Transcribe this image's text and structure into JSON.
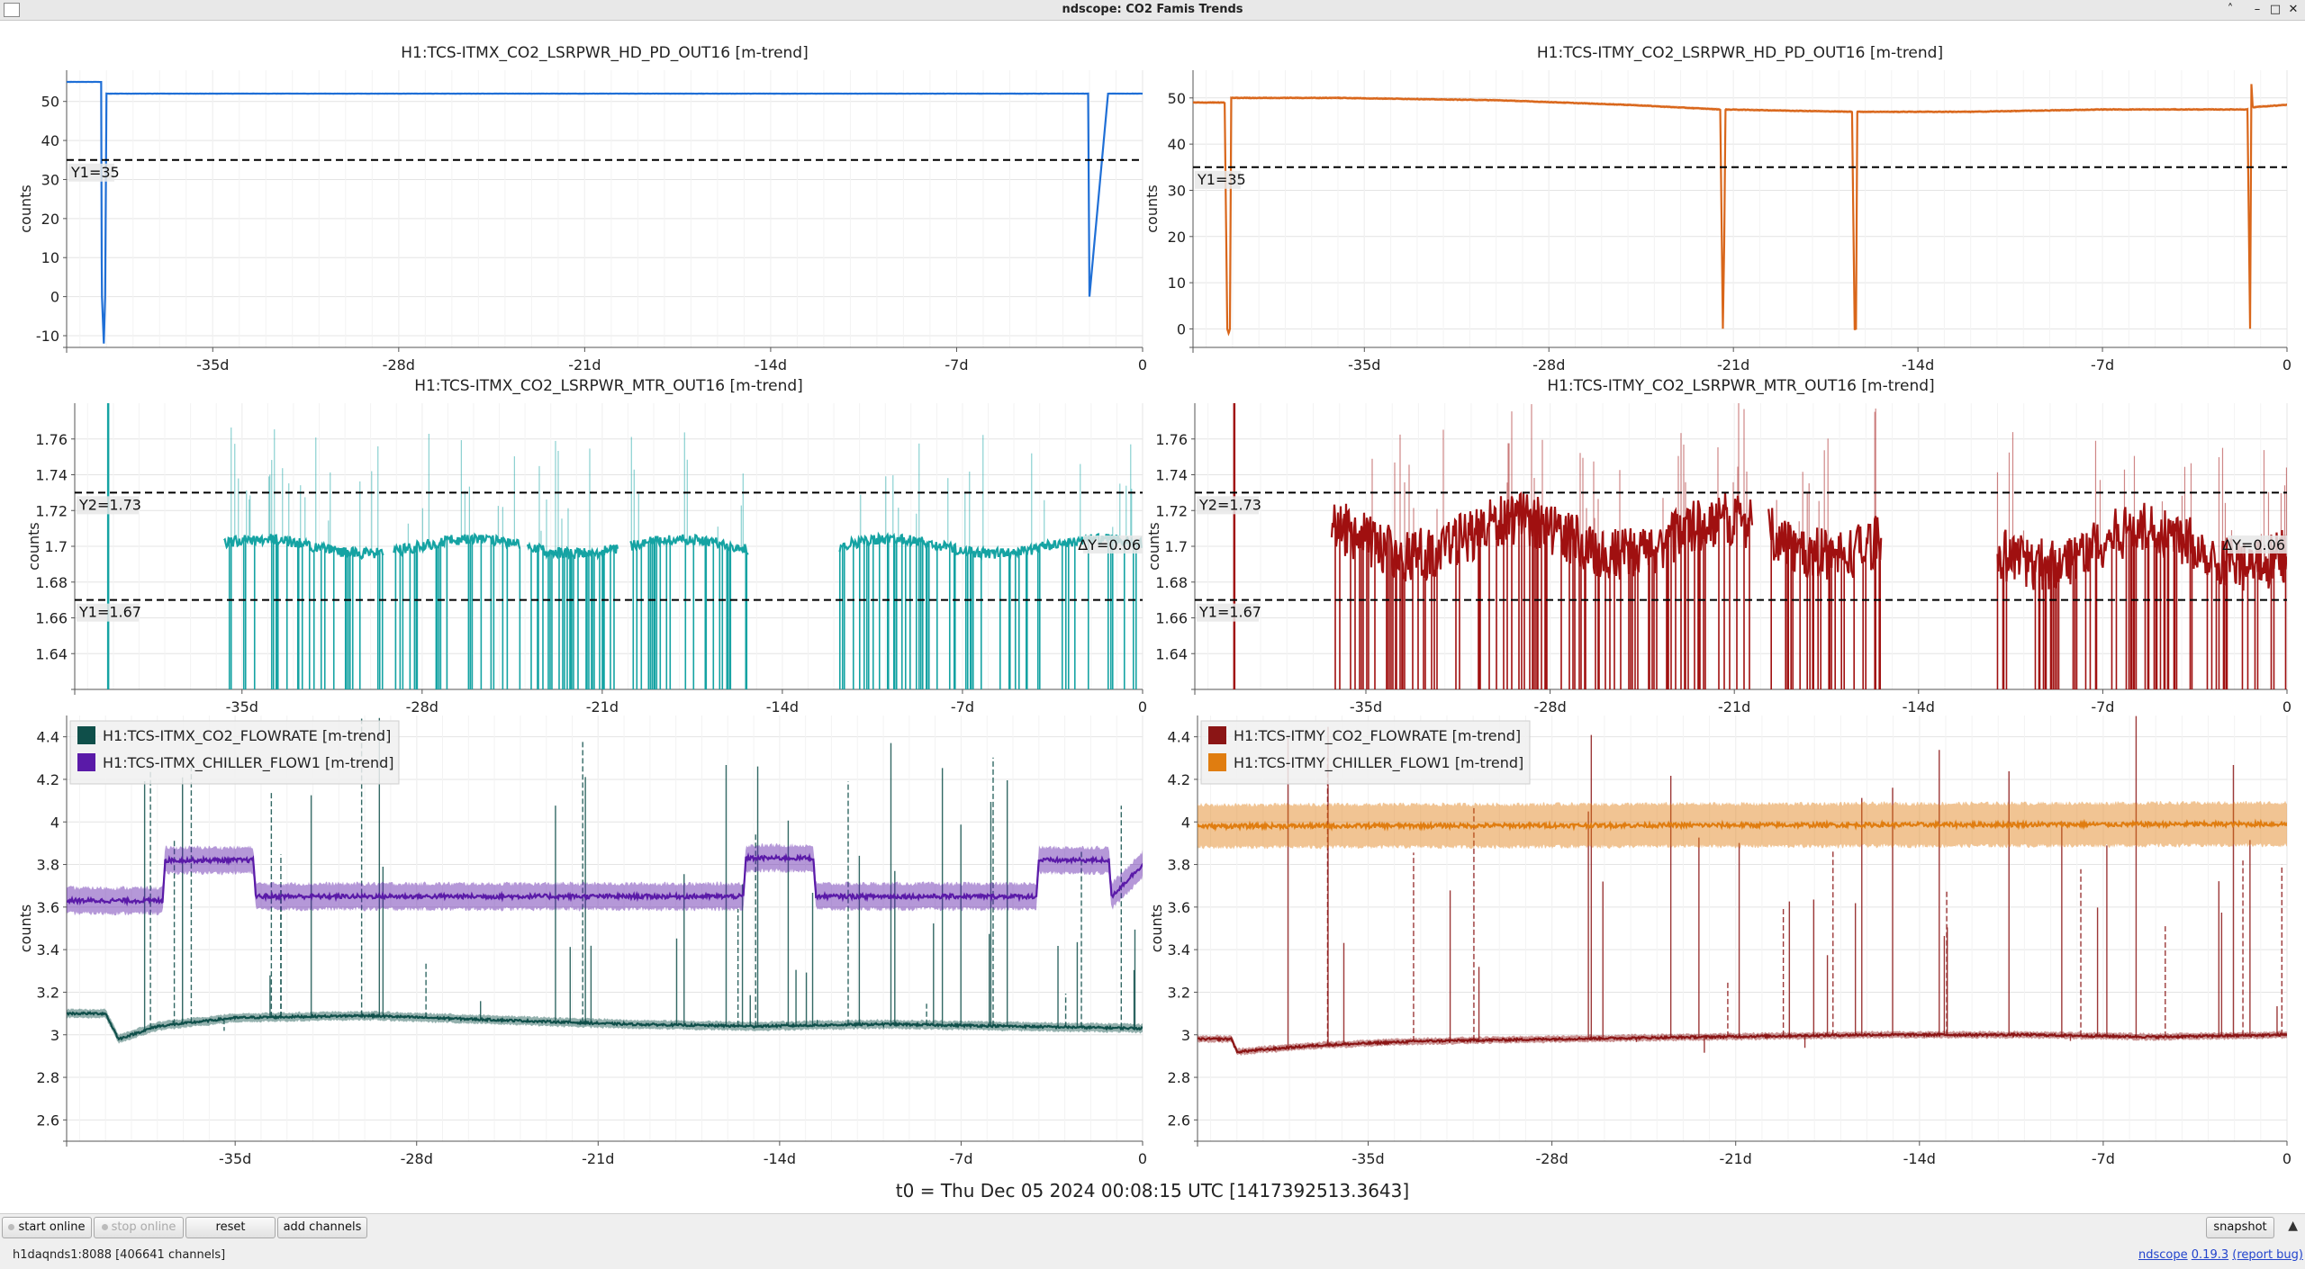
{
  "window": {
    "title": "ndscope: CO2 Famis Trends"
  },
  "t0_label": "t0 = Thu Dec 05 2024 00:08:15 UTC [1417392513.3643]",
  "toolbar": {
    "start_online": "start online",
    "stop_online": "stop online",
    "reset": "reset",
    "add_channels": "add channels",
    "snapshot": "snapshot"
  },
  "status": {
    "server": "h1daqnds1:8088  [406641 channels]"
  },
  "version": {
    "prefix": "ndscope",
    "number": "0.19.3",
    "report": "(report bug)"
  },
  "colors": {
    "grid": "#e6e6e6",
    "cursor": "#000000"
  },
  "chart_data": [
    {
      "type": "line",
      "title": "H1:TCS-ITMX_CO2_LSRPWR_HD_PD_OUT16 [m-trend]",
      "ylabel": "counts",
      "xlabel": "",
      "xlim": [
        -40.5,
        0
      ],
      "ylim": [
        -13,
        58
      ],
      "x_ticks": [
        -35,
        -28,
        -21,
        -14,
        -7,
        0
      ],
      "x_tick_labels": [
        "-35d",
        "-28d",
        "-21d",
        "-14d",
        "-7d",
        "0"
      ],
      "y_ticks": [
        -10,
        0,
        10,
        20,
        30,
        40,
        50
      ],
      "y_tick_labels": [
        "-10",
        "0",
        "10",
        "20",
        "30",
        "40",
        "50"
      ],
      "grid": true,
      "cursors": [
        {
          "axis": "y",
          "value": 35,
          "label": "Y1=35"
        }
      ],
      "series": [
        {
          "color": "#1f6fd6",
          "band": 0.3,
          "noise": 0.05,
          "x": [
            -40.5,
            -39.2,
            -39.18,
            -39.17,
            -39.1,
            -39.05,
            -39.0,
            -2.1,
            -2.05,
            -2.0,
            -1.3,
            0
          ],
          "y": [
            55,
            55,
            10,
            0,
            -12,
            0,
            52,
            52,
            52,
            0,
            52,
            52
          ]
        }
      ]
    },
    {
      "type": "line",
      "title": "H1:TCS-ITMY_CO2_LSRPWR_HD_PD_OUT16 [m-trend]",
      "ylabel": "counts",
      "xlabel": "",
      "xlim": [
        -41.5,
        0
      ],
      "ylim": [
        -4,
        56
      ],
      "x_ticks": [
        -35,
        -28,
        -21,
        -14,
        -7,
        0
      ],
      "x_tick_labels": [
        "-35d",
        "-28d",
        "-21d",
        "-14d",
        "-7d",
        "0"
      ],
      "y_ticks": [
        0,
        10,
        20,
        30,
        40,
        50
      ],
      "y_tick_labels": [
        "0",
        "10",
        "20",
        "30",
        "40",
        "50"
      ],
      "grid": true,
      "cursors": [
        {
          "axis": "y",
          "value": 35,
          "label": "Y1=35"
        }
      ],
      "series": [
        {
          "color": "#d9661a",
          "band": 0.6,
          "noise": 0.15,
          "x": [
            -41.5,
            -40.3,
            -40.2,
            -40.15,
            -40.1,
            -40.05,
            -37,
            -36,
            -35.9,
            -36,
            -30,
            -25,
            -21.5,
            -21.4,
            -21.35,
            -21.3,
            -16.5,
            -16.4,
            -16.35,
            -16.3,
            -12,
            -7,
            -1.5,
            -1.4,
            -1.35,
            -1.3,
            0
          ],
          "y": [
            49,
            49,
            0,
            -1,
            0,
            50,
            50,
            50,
            50,
            50,
            49.5,
            48.5,
            47.5,
            0,
            18,
            47.5,
            47,
            0,
            0,
            47,
            47,
            47.5,
            47.5,
            0,
            53,
            48,
            48.5
          ]
        }
      ]
    },
    {
      "type": "line",
      "title": "H1:TCS-ITMX_CO2_LSRPWR_MTR_OUT16 [m-trend]",
      "ylabel": "counts",
      "xlabel": "",
      "xlim": [
        -41.5,
        0
      ],
      "ylim": [
        1.62,
        1.78
      ],
      "x_ticks": [
        -35,
        -28,
        -21,
        -14,
        -7,
        0
      ],
      "x_tick_labels": [
        "-35d",
        "-28d",
        "-21d",
        "-14d",
        "-7d",
        "0"
      ],
      "y_ticks": [
        1.64,
        1.66,
        1.68,
        1.7,
        1.72,
        1.74,
        1.76
      ],
      "y_tick_labels": [
        "1.64",
        "1.66",
        "1.68",
        "1.7",
        "1.72",
        "1.74",
        "1.76"
      ],
      "grid": true,
      "cursors": [
        {
          "axis": "y",
          "value": 1.73,
          "label": "Y2=1.73"
        },
        {
          "axis": "y",
          "value": 1.67,
          "label": "Y1=1.67"
        }
      ],
      "delta_label": "ΔY=0.06",
      "series": [
        {
          "color": "#15a3a3",
          "band": 0.006,
          "noise": 0.004,
          "spikes": [
            [
              -40.2,
              1.62,
              1.78
            ]
          ],
          "segments": [
            [
              -35.7,
              -29.5,
              1.7
            ],
            [
              -29.1,
              -24.2,
              1.7
            ],
            [
              -23.9,
              -20.4,
              1.7
            ],
            [
              -19.9,
              -15.3,
              1.7
            ],
            [
              -11.8,
              0,
              1.7
            ]
          ],
          "dropout_min": 1.62,
          "dropout_density": 0.45
        }
      ]
    },
    {
      "type": "line",
      "title": "H1:TCS-ITMY_CO2_LSRPWR_MTR_OUT16 [m-trend]",
      "ylabel": "counts",
      "xlabel": "",
      "xlim": [
        -41.5,
        0
      ],
      "ylim": [
        1.62,
        1.78
      ],
      "x_ticks": [
        -35,
        -28,
        -21,
        -14,
        -7,
        0
      ],
      "x_tick_labels": [
        "-35d",
        "-28d",
        "-21d",
        "-14d",
        "-7d",
        "0"
      ],
      "y_ticks": [
        1.64,
        1.66,
        1.68,
        1.7,
        1.72,
        1.74,
        1.76
      ],
      "y_tick_labels": [
        "1.64",
        "1.66",
        "1.68",
        "1.7",
        "1.72",
        "1.74",
        "1.76"
      ],
      "grid": true,
      "cursors": [
        {
          "axis": "y",
          "value": 1.73,
          "label": "Y2=1.73"
        },
        {
          "axis": "y",
          "value": 1.67,
          "label": "Y1=1.67"
        }
      ],
      "delta_label": "ΔY=0.06",
      "series": [
        {
          "color": "#a01010",
          "band": 0.03,
          "noise": 0.01,
          "spikes": [
            [
              -40.0,
              1.62,
              1.78
            ]
          ],
          "segments": [
            [
              -36.3,
              -20.3,
              1.705
            ],
            [
              -19.7,
              -15.4,
              1.705
            ],
            [
              -11.0,
              0,
              1.7
            ]
          ],
          "dropout_min": 1.62,
          "dropout_density": 0.6
        }
      ]
    },
    {
      "type": "line",
      "title": "",
      "ylabel": "counts",
      "xlabel": "",
      "xlim": [
        -41.5,
        0
      ],
      "ylim": [
        2.5,
        4.5
      ],
      "x_ticks": [
        -35,
        -28,
        -21,
        -14,
        -7,
        0
      ],
      "x_tick_labels": [
        "-35d",
        "-28d",
        "-21d",
        "-14d",
        "-7d",
        "0"
      ],
      "y_ticks": [
        2.6,
        2.8,
        3,
        3.2,
        3.4,
        3.6,
        3.8,
        4,
        4.2,
        4.4
      ],
      "y_tick_labels": [
        "2.6",
        "2.8",
        "3",
        "3.2",
        "3.4",
        "3.6",
        "3.8",
        "4",
        "4.2",
        "4.4"
      ],
      "grid": true,
      "legend": "top-left",
      "series": [
        {
          "name": "H1:TCS-ITMX_CO2_FLOWRATE [m-trend]",
          "color": "#0f4f4a",
          "band": 0.04,
          "noise": 0.01,
          "x": [
            -41.5,
            -40,
            -39.5,
            -38,
            -35,
            -30,
            -25,
            -20,
            -15,
            -10,
            -5,
            0
          ],
          "y": [
            3.1,
            3.1,
            2.98,
            3.04,
            3.08,
            3.09,
            3.07,
            3.05,
            3.04,
            3.05,
            3.04,
            3.03
          ],
          "spike_count": 55,
          "spike_range": [
            3.0,
            4.5
          ]
        },
        {
          "name": "H1:TCS-ITMX_CHILLER_FLOW1 [m-trend]",
          "color": "#5a1aa8",
          "band": 0.12,
          "noise": 0.02,
          "x": [
            -41.5,
            -37.8,
            -37.7,
            -34.3,
            -34.2,
            -15.4,
            -15.3,
            -12.7,
            -12.6,
            -7.5,
            -7.4,
            -4.1,
            -4.0,
            -1.3,
            -1.2,
            0
          ],
          "y": [
            3.63,
            3.63,
            3.82,
            3.82,
            3.65,
            3.65,
            3.83,
            3.83,
            3.65,
            3.65,
            3.65,
            3.65,
            3.82,
            3.82,
            3.65,
            3.8
          ],
          "spike_count": 0
        }
      ]
    },
    {
      "type": "line",
      "title": "",
      "ylabel": "counts",
      "xlabel": "",
      "xlim": [
        -41.5,
        0
      ],
      "ylim": [
        2.5,
        4.5
      ],
      "x_ticks": [
        -35,
        -28,
        -21,
        -14,
        -7,
        0
      ],
      "x_tick_labels": [
        "-35d",
        "-28d",
        "-21d",
        "-14d",
        "-7d",
        "0"
      ],
      "y_ticks": [
        2.6,
        2.8,
        3,
        3.2,
        3.4,
        3.6,
        3.8,
        4,
        4.2,
        4.4
      ],
      "y_tick_labels": [
        "2.6",
        "2.8",
        "3",
        "3.2",
        "3.4",
        "3.6",
        "3.8",
        "4",
        "4.2",
        "4.4"
      ],
      "grid": true,
      "legend": "top-left",
      "series": [
        {
          "name": "H1:TCS-ITMY_CO2_FLOWRATE [m-trend]",
          "color": "#8b1515",
          "band": 0.03,
          "noise": 0.01,
          "x": [
            -41.5,
            -40.2,
            -40.0,
            -37,
            -33,
            -28,
            -22,
            -16,
            -10,
            -5,
            0
          ],
          "y": [
            2.98,
            2.98,
            2.92,
            2.95,
            2.97,
            2.98,
            2.99,
            3.0,
            3.0,
            2.99,
            3.0
          ],
          "spike_count": 45,
          "spike_range": [
            2.9,
            4.5
          ]
        },
        {
          "name": "H1:TCS-ITMY_CHILLER_FLOW1 [m-trend]",
          "color": "#e07d10",
          "band": 0.2,
          "noise": 0.02,
          "x": [
            -41.5,
            0
          ],
          "y": [
            3.98,
            3.99
          ],
          "spike_count": 0
        }
      ]
    }
  ]
}
